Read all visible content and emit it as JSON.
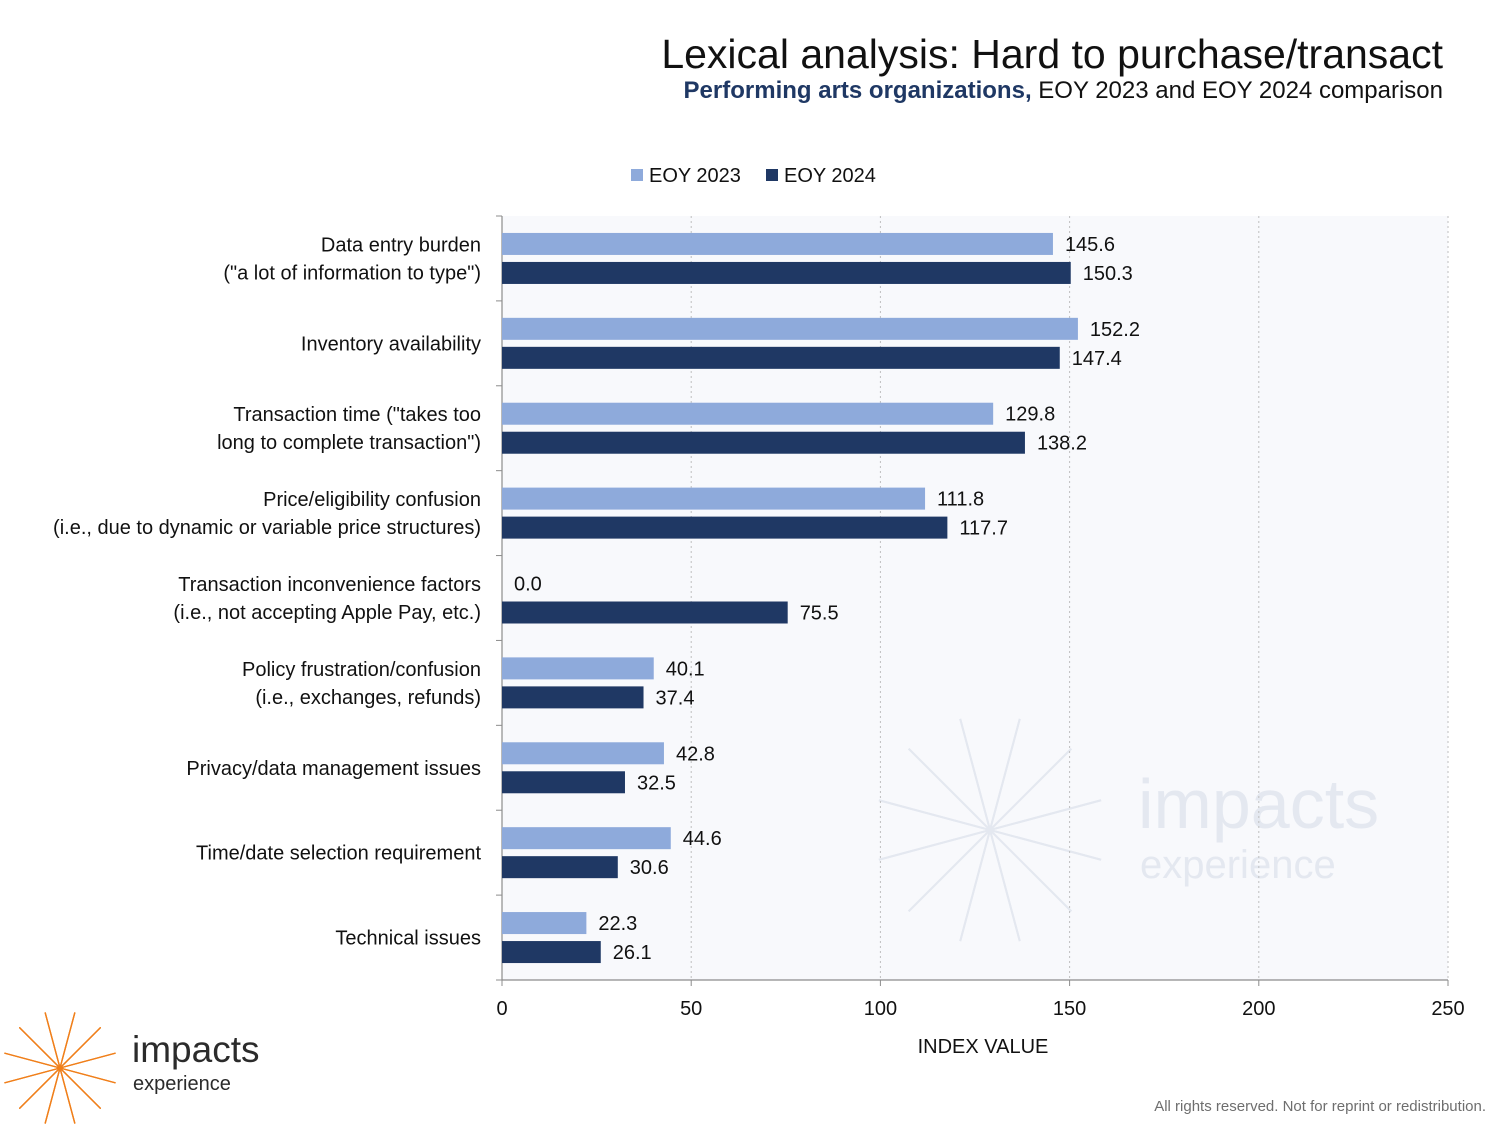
{
  "header": {
    "title": "Lexical analysis: Hard to purchase/transact",
    "subtitle_emphasis": "Performing arts organizations,",
    "subtitle_rest": " EOY 2023 and EOY 2024 comparison"
  },
  "colors": {
    "eoy2023": "#8eaadb",
    "eoy2024": "#1f3864",
    "plot_background": "#f8f9fc",
    "grid": "#bfbfbf",
    "watermark": "#e4e8f0",
    "logo_orange": "#f07f1a"
  },
  "chart_data": {
    "type": "bar",
    "orientation": "horizontal",
    "title": "Lexical analysis: Hard to purchase/transact",
    "subtitle": "Performing arts organizations, EOY 2023 and EOY 2024 comparison",
    "categories": [
      [
        "Data entry burden",
        "(\"a lot of information to type\")"
      ],
      [
        "Inventory availability"
      ],
      [
        "Transaction time (\"takes too",
        "long to complete transaction\")"
      ],
      [
        "Price/eligibility confusion",
        "(i.e., due to dynamic or variable price structures)"
      ],
      [
        "Transaction inconvenience factors",
        "(i.e., not accepting Apple Pay, etc.)"
      ],
      [
        "Policy frustration/confusion",
        "(i.e., exchanges, refunds)"
      ],
      [
        "Privacy/data management issues"
      ],
      [
        "Time/date selection requirement"
      ],
      [
        "Technical issues"
      ]
    ],
    "series": [
      {
        "name": "EOY 2023",
        "values": [
          145.6,
          152.2,
          129.8,
          111.8,
          0.0,
          40.1,
          42.8,
          44.6,
          22.3
        ]
      },
      {
        "name": "EOY 2024",
        "values": [
          150.3,
          147.4,
          138.2,
          117.7,
          75.5,
          37.4,
          32.5,
          30.6,
          26.1
        ]
      }
    ],
    "data_labels": [
      [
        "145.6",
        "152.2",
        "129.8",
        "111.8",
        "0.0",
        "40.1",
        "42.8",
        "44.6",
        "22.3"
      ],
      [
        "150.3",
        "147.4",
        "138.2",
        "117.7",
        "75.5",
        "37.4",
        "32.5",
        "30.6",
        "26.1"
      ]
    ],
    "xlabel": "INDEX VALUE",
    "xlim": [
      0,
      250
    ],
    "xticks": [
      0,
      50,
      100,
      150,
      200,
      250
    ],
    "xtick_labels": [
      "0",
      "50",
      "100",
      "150",
      "200",
      "250"
    ],
    "grid": "vertical dotted",
    "legend": "top"
  },
  "watermark": {
    "word": "impacts",
    "sub": "experience"
  },
  "logo": {
    "word": "impacts",
    "sub": "experience"
  },
  "footer": {
    "copyright": "All rights reserved. Not for reprint or redistribution."
  }
}
